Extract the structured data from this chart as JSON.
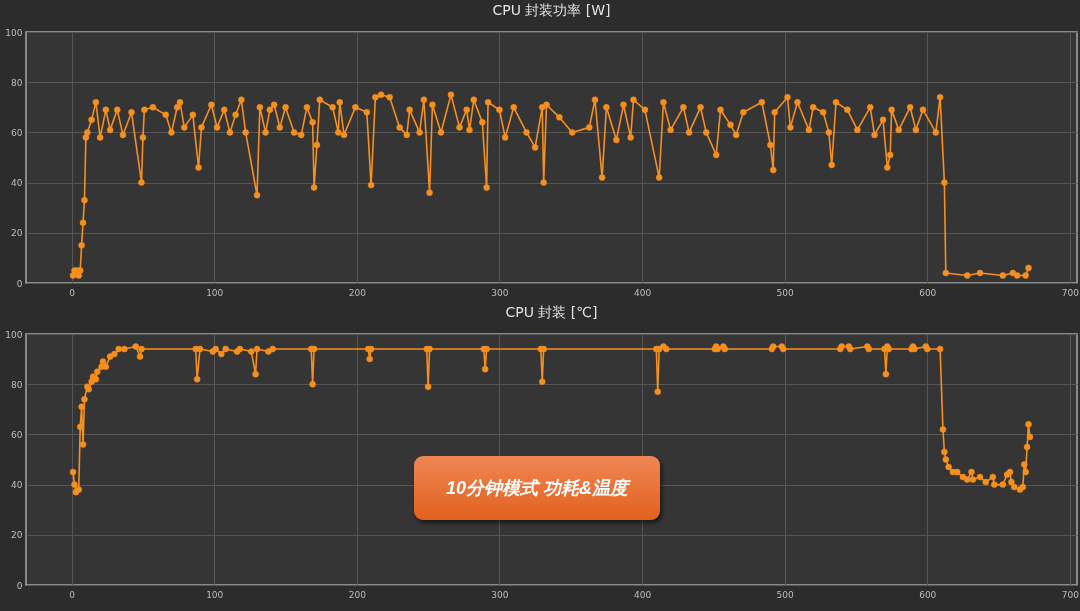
{
  "chart_data": [
    {
      "type": "line",
      "title": "CPU 封装功率 [W]",
      "x": [
        1,
        2,
        4,
        5,
        6,
        7,
        8,
        9,
        10,
        11,
        14,
        17,
        20,
        24,
        27,
        32,
        36,
        42,
        49,
        50,
        51,
        57,
        66,
        70,
        74,
        76,
        79,
        85,
        89,
        91,
        98,
        102,
        107,
        111,
        115,
        119,
        122,
        130,
        132,
        136,
        139,
        142,
        146,
        150,
        156,
        161,
        165,
        169,
        170,
        172,
        174,
        183,
        187,
        188,
        191,
        199,
        207,
        210,
        213,
        217,
        223,
        230,
        235,
        237,
        244,
        247,
        251,
        253,
        259,
        266,
        272,
        277,
        279,
        282,
        288,
        291,
        292,
        300,
        304,
        310,
        319,
        325,
        330,
        331,
        333,
        342,
        351,
        363,
        367,
        372,
        375,
        382,
        387,
        392,
        394,
        402,
        412,
        415,
        420,
        429,
        433,
        441,
        445,
        452,
        455,
        462,
        466,
        471,
        484,
        490,
        492,
        493,
        502,
        504,
        509,
        517,
        520,
        527,
        531,
        533,
        536,
        544,
        551,
        560,
        563,
        569,
        572,
        574,
        575,
        580,
        588,
        592,
        597,
        606,
        609,
        612,
        613,
        628,
        637,
        653,
        660,
        663,
        669,
        671
      ],
      "values": [
        3,
        5,
        5,
        3,
        5,
        15,
        24,
        33,
        58,
        60,
        65,
        72,
        58,
        69,
        61,
        69,
        59,
        68,
        40,
        58,
        69,
        70,
        67,
        60,
        70,
        72,
        62,
        67,
        46,
        62,
        71,
        62,
        69,
        60,
        67,
        73,
        60,
        35,
        70,
        60,
        69,
        71,
        62,
        70,
        60,
        59,
        70,
        64,
        38,
        55,
        73,
        70,
        60,
        72,
        59,
        70,
        68,
        39,
        74,
        75,
        74,
        62,
        59,
        69,
        60,
        73,
        36,
        71,
        60,
        75,
        62,
        69,
        61,
        73,
        64,
        38,
        72,
        69,
        58,
        70,
        60,
        54,
        70,
        40,
        71,
        66,
        60,
        62,
        73,
        42,
        70,
        57,
        71,
        58,
        73,
        69,
        42,
        72,
        61,
        70,
        60,
        70,
        60,
        51,
        69,
        63,
        59,
        68,
        72,
        55,
        45,
        68,
        74,
        62,
        72,
        61,
        70,
        68,
        60,
        47,
        72,
        69,
        61,
        70,
        59,
        65,
        46,
        51,
        69,
        61,
        70,
        61,
        69,
        60,
        74,
        40,
        4,
        3,
        4,
        3,
        4,
        3,
        3,
        6
      ],
      "color": "#f78f1e",
      "marker": "circle",
      "line_style": "solid",
      "xlim": [
        -32,
        705
      ],
      "xticks": [
        0,
        100,
        200,
        300,
        400,
        500,
        600,
        700
      ],
      "ylim": [
        0,
        100
      ],
      "yticks": [
        0,
        20,
        40,
        60,
        80,
        100
      ],
      "grid": true
    },
    {
      "type": "line",
      "title": "CPU 封装 [℃]",
      "x": [
        1,
        2,
        3,
        5,
        6,
        7,
        8,
        9,
        11,
        12,
        14,
        15,
        17,
        18,
        21,
        22,
        24,
        27,
        30,
        33,
        37,
        45,
        48,
        49,
        87,
        88,
        90,
        99,
        101,
        105,
        108,
        116,
        118,
        126,
        129,
        130,
        138,
        141,
        168,
        169,
        170,
        208,
        209,
        210,
        249,
        250,
        251,
        289,
        290,
        291,
        329,
        330,
        331,
        410,
        411,
        412,
        415,
        417,
        451,
        452,
        453,
        457,
        458,
        491,
        492,
        498,
        499,
        539,
        540,
        545,
        546,
        558,
        559,
        570,
        571,
        572,
        573,
        589,
        590,
        591,
        599,
        600,
        609,
        611,
        612,
        613,
        615,
        618,
        621,
        625,
        628,
        631,
        632,
        637,
        641,
        646,
        647,
        653,
        656,
        658,
        659,
        661,
        665,
        667,
        668,
        669,
        670,
        671,
        672
      ],
      "values": [
        45,
        40,
        37,
        38,
        63,
        71,
        56,
        74,
        79,
        78,
        81,
        83,
        82,
        85,
        87,
        89,
        87,
        91,
        92,
        94,
        94,
        95,
        91,
        94,
        94,
        82,
        94,
        93,
        94,
        92,
        94,
        93,
        94,
        93,
        84,
        94,
        93,
        94,
        94,
        80,
        94,
        94,
        90,
        94,
        94,
        79,
        94,
        94,
        86,
        94,
        94,
        81,
        94,
        94,
        77,
        94,
        95,
        94,
        94,
        95,
        94,
        95,
        94,
        94,
        95,
        95,
        94,
        94,
        95,
        95,
        94,
        95,
        94,
        94,
        84,
        95,
        94,
        94,
        95,
        94,
        95,
        94,
        94,
        62,
        53,
        50,
        47,
        45,
        45,
        43,
        42,
        45,
        42,
        43,
        41,
        43,
        40,
        40,
        44,
        45,
        41,
        39,
        38,
        39,
        48,
        45,
        55,
        64,
        59
      ],
      "color": "#f78f1e",
      "marker": "circle",
      "line_style": "solid",
      "xlim": [
        -32,
        705
      ],
      "xticks": [
        0,
        100,
        200,
        300,
        400,
        500,
        600,
        700
      ],
      "ylim": [
        0,
        100
      ],
      "yticks": [
        0,
        20,
        40,
        60,
        80,
        100
      ],
      "grid": true,
      "annotations": [
        "10分钟模式 功耗&温度"
      ]
    }
  ]
}
